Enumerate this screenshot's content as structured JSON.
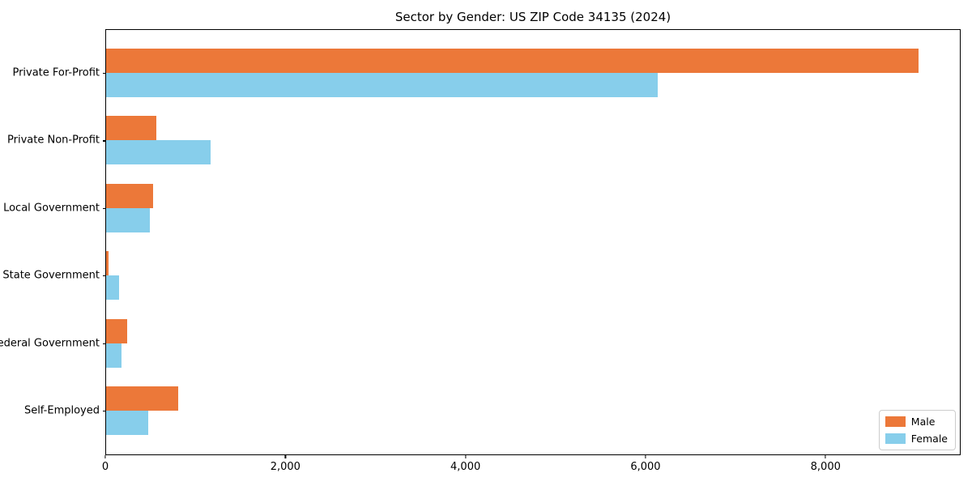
{
  "title": "Sector by Gender: US ZIP Code 34135 (2024)",
  "legend": {
    "position": "lower right",
    "entries": [
      {
        "label": "Male",
        "color": "#EC7839"
      },
      {
        "label": "Female",
        "color": "#87CEEB"
      }
    ]
  },
  "chart_data": {
    "type": "bar",
    "orientation": "horizontal",
    "title": "Sector by Gender: US ZIP Code 34135 (2024)",
    "categories": [
      "Private For-Profit",
      "Private Non-Profit",
      "Local Government",
      "State Government",
      "Federal Government",
      "Self-Employed"
    ],
    "series": [
      {
        "name": "Male",
        "color": "#EC7839",
        "values": [
          9040,
          560,
          525,
          30,
          235,
          805
        ]
      },
      {
        "name": "Female",
        "color": "#87CEEB",
        "values": [
          6140,
          1160,
          490,
          140,
          175,
          470
        ]
      }
    ],
    "xlabel": "",
    "ylabel": "",
    "xlim": [
      0,
      9500
    ],
    "xticks": [
      0,
      2000,
      4000,
      6000,
      8000
    ],
    "xtick_labels": [
      "0",
      "2,000",
      "4,000",
      "6,000",
      "8,000"
    ],
    "grid": false,
    "legend_position": "lower right"
  }
}
